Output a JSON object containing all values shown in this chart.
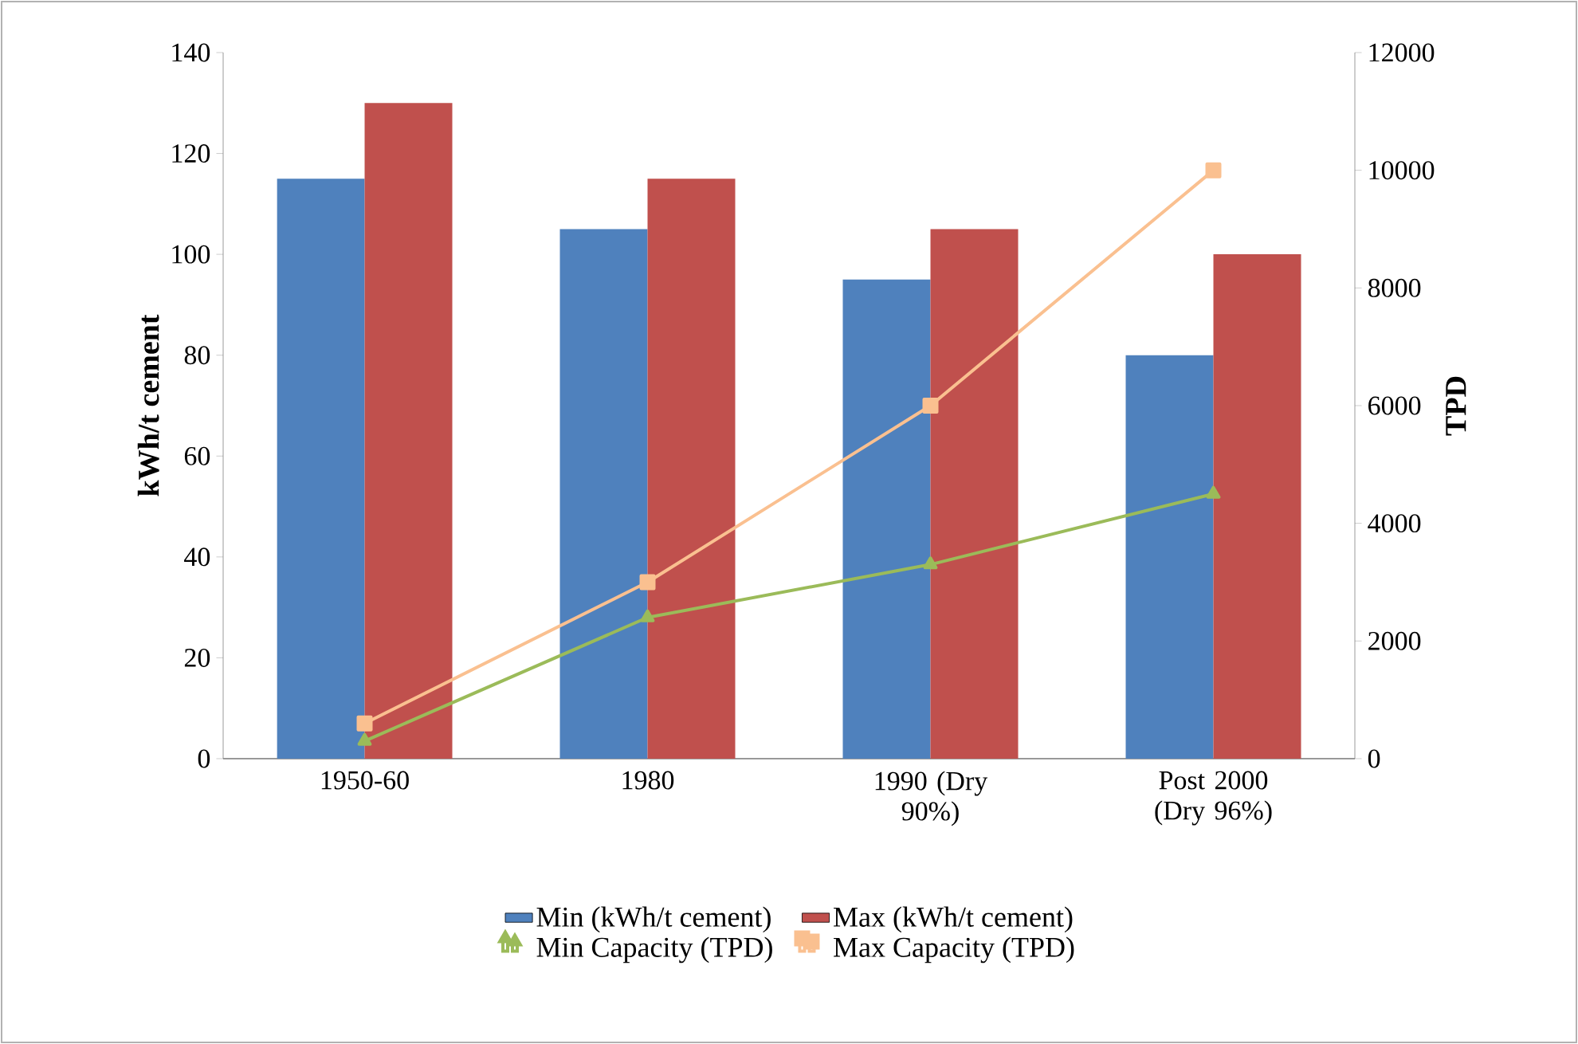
{
  "chart_data": {
    "type": "bar",
    "categories": [
      "1950-60",
      "1980",
      "1990 (Dry 90%)",
      "Post 2000 (Dry 96%)"
    ],
    "ylabel": "kWh/t cement",
    "y2label": "TPD",
    "ylim": [
      0,
      140
    ],
    "yticks": [
      0,
      20,
      40,
      60,
      80,
      100,
      120,
      140
    ],
    "y2lim": [
      0,
      12000
    ],
    "y2ticks": [
      0,
      2000,
      4000,
      6000,
      8000,
      10000,
      12000
    ],
    "legend": "bottom",
    "series": [
      {
        "name": "Min (kWh/t cement)",
        "color": "#4f81bd",
        "values": [
          115,
          105,
          95,
          80
        ]
      },
      {
        "name": "Max (kWh/t cement)",
        "color": "#c0504d",
        "values": [
          130,
          115,
          105,
          100
        ]
      },
      {
        "name": "Min Capacity (TPD)",
        "type": "line",
        "axis": "y2",
        "marker": "triangle",
        "color": "#9bbb59",
        "values": [
          300,
          2400,
          3300,
          4500
        ]
      },
      {
        "name": "Max Capacity (TPD)",
        "type": "line",
        "axis": "y2",
        "marker": "square",
        "color": "#fac090",
        "values": [
          600,
          3000,
          6000,
          10000
        ]
      }
    ]
  }
}
